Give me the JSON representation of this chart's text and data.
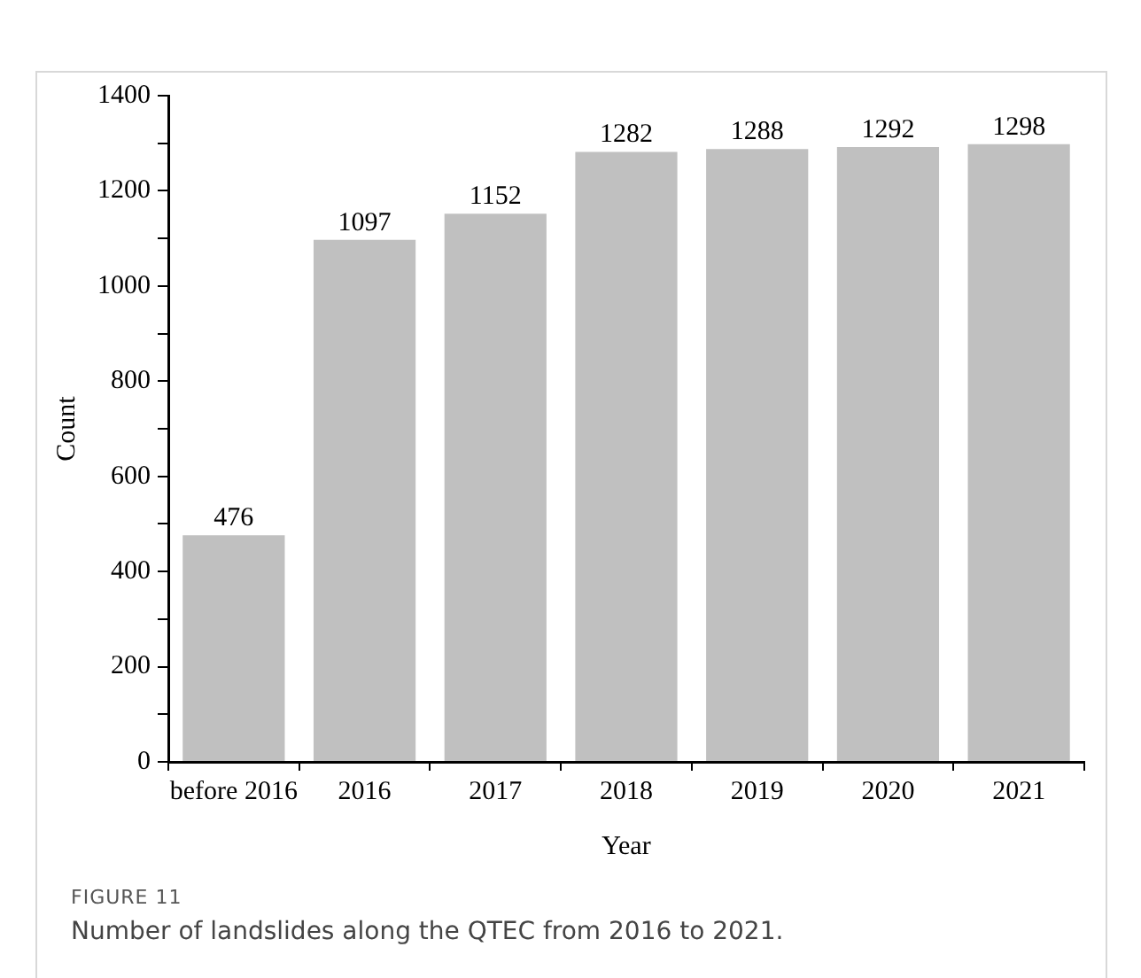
{
  "chart_data": {
    "type": "bar",
    "xlabel": "Year",
    "ylabel": "Count",
    "categories": [
      "before 2016",
      "2016",
      "2017",
      "2018",
      "2019",
      "2020",
      "2021"
    ],
    "values": [
      476,
      1097,
      1152,
      1282,
      1288,
      1292,
      1298
    ],
    "color": "#c0c0c0",
    "ylim": [
      0,
      1400
    ],
    "yticks": [
      0,
      {
        "value": 100,
        "label": null
      },
      200,
      {
        "value": 300,
        "label": null
      },
      400,
      {
        "value": 500,
        "label": null
      },
      600,
      {
        "value": 700,
        "label": null
      },
      800,
      {
        "value": 900,
        "label": null
      },
      1000,
      {
        "value": 1100,
        "label": null
      },
      1200,
      {
        "value": 1300,
        "label": null
      },
      1400
    ],
    "data_labels": true,
    "grid": false,
    "legend": false,
    "annotations": [
      "FIGURE 11",
      "Number of landslides along the QTEC from 2016 to 2021."
    ]
  }
}
